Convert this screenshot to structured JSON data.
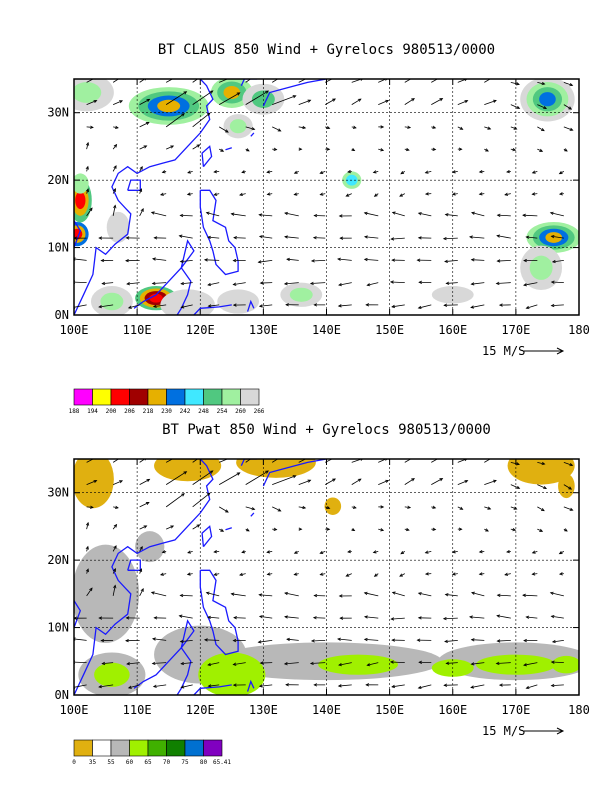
{
  "chart_data": [
    {
      "type": "heatmap",
      "title": "BT CLAUS 850 Wind + Gyrelocs 980513/0000",
      "x_ticks": [
        "100E",
        "110E",
        "120E",
        "130E",
        "140E",
        "150E",
        "160E",
        "170E",
        "180"
      ],
      "y_ticks": [
        "0N",
        "10N",
        "20N",
        "30N"
      ],
      "xlim": [
        100,
        180
      ],
      "ylim": [
        0,
        35
      ],
      "grid": true,
      "vector_reference": {
        "magnitude": 15,
        "label": "15 M/S"
      },
      "legend": {
        "placement": "below",
        "labels": [
          "188",
          "194",
          "200",
          "206",
          "218",
          "230",
          "242",
          "248",
          "254",
          "260",
          "266"
        ],
        "colors": [
          "#ff00ff",
          "#ffff00",
          "#ff0000",
          "#a00000",
          "#e6b000",
          "#0070e0",
          "#40e8ff",
          "#50c880",
          "#a0f0a0",
          "#d8d8d8"
        ]
      }
    },
    {
      "type": "heatmap",
      "title": "BT Pwat 850 Wind + Gyrelocs 980513/0000",
      "x_ticks": [
        "100E",
        "110E",
        "120E",
        "130E",
        "140E",
        "150E",
        "160E",
        "170E",
        "180"
      ],
      "y_ticks": [
        "0N",
        "10N",
        "20N",
        "30N"
      ],
      "xlim": [
        100,
        180
      ],
      "ylim": [
        0,
        35
      ],
      "grid": true,
      "vector_reference": {
        "magnitude": 15,
        "label": "15 M/S"
      },
      "legend": {
        "placement": "below",
        "labels": [
          "0",
          "35",
          "55",
          "60",
          "65",
          "70",
          "75",
          "80",
          "65.41"
        ],
        "colors": [
          "#e0b010",
          "#ffffff",
          "#b8b8b8",
          "#a0f000",
          "#40b000",
          "#108000",
          "#0070d0",
          "#8000c0"
        ]
      }
    }
  ]
}
